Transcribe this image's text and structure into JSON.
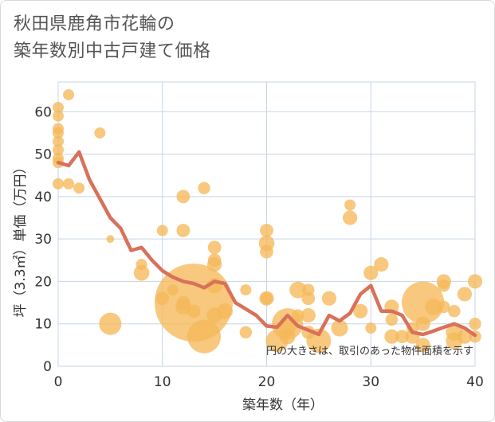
{
  "title": {
    "line1": "秋田県鹿角市花輪の",
    "line2": "築年数別中古戸建て価格"
  },
  "chart_data": {
    "type": "scatter",
    "xlabel": "築年数（年）",
    "ylabel": "坪（3.3㎡）単価（万円）",
    "xlim": [
      0,
      40
    ],
    "ylim": [
      0,
      67
    ],
    "xticks": [
      0,
      10,
      20,
      30,
      40
    ],
    "yticks": [
      0,
      10,
      20,
      30,
      40,
      50,
      60
    ],
    "grid": true,
    "annotation": "円の大きさは、取引のあった物件面積を示す",
    "colors": {
      "bubble": "#f5b85a",
      "line": "#d9715a",
      "grid": "#c7d5e3"
    },
    "points": [
      {
        "x": 0,
        "y": 61,
        "s": 1
      },
      {
        "x": 0,
        "y": 59,
        "s": 1
      },
      {
        "x": 0,
        "y": 56,
        "s": 1
      },
      {
        "x": 0,
        "y": 55,
        "s": 1
      },
      {
        "x": 0,
        "y": 53,
        "s": 1
      },
      {
        "x": 0,
        "y": 51,
        "s": 1
      },
      {
        "x": 0,
        "y": 49,
        "s": 1
      },
      {
        "x": 0,
        "y": 48,
        "s": 1
      },
      {
        "x": 0,
        "y": 43,
        "s": 1
      },
      {
        "x": 1,
        "y": 64,
        "s": 1
      },
      {
        "x": 1,
        "y": 43,
        "s": 1
      },
      {
        "x": 2,
        "y": 42,
        "s": 1
      },
      {
        "x": 4,
        "y": 55,
        "s": 1
      },
      {
        "x": 5,
        "y": 30,
        "s": 0.7
      },
      {
        "x": 5,
        "y": 10,
        "s": 2
      },
      {
        "x": 8,
        "y": 24,
        "s": 1
      },
      {
        "x": 8,
        "y": 22,
        "s": 1.4
      },
      {
        "x": 10,
        "y": 32,
        "s": 1
      },
      {
        "x": 10,
        "y": 16,
        "s": 1.2
      },
      {
        "x": 11,
        "y": 18,
        "s": 1
      },
      {
        "x": 12,
        "y": 40,
        "s": 1.2
      },
      {
        "x": 12,
        "y": 32,
        "s": 1.2
      },
      {
        "x": 12,
        "y": 15,
        "s": 1.2
      },
      {
        "x": 12,
        "y": 14,
        "s": 1.4
      },
      {
        "x": 13,
        "y": 15,
        "s": 7
      },
      {
        "x": 13,
        "y": 13,
        "s": 1.2
      },
      {
        "x": 14,
        "y": 42,
        "s": 1.1
      },
      {
        "x": 14,
        "y": 7,
        "s": 3
      },
      {
        "x": 15,
        "y": 28,
        "s": 1.2
      },
      {
        "x": 15,
        "y": 25,
        "s": 1.2
      },
      {
        "x": 15,
        "y": 24,
        "s": 1.3
      },
      {
        "x": 15,
        "y": 19,
        "s": 1.4
      },
      {
        "x": 15,
        "y": 12,
        "s": 1.4
      },
      {
        "x": 16,
        "y": 13,
        "s": 1.4
      },
      {
        "x": 18,
        "y": 18,
        "s": 1
      },
      {
        "x": 18,
        "y": 8,
        "s": 1.1
      },
      {
        "x": 20,
        "y": 32,
        "s": 1.2
      },
      {
        "x": 20,
        "y": 29,
        "s": 1.4
      },
      {
        "x": 20,
        "y": 27,
        "s": 1.2
      },
      {
        "x": 20,
        "y": 16,
        "s": 1.1
      },
      {
        "x": 20,
        "y": 16,
        "s": 1.3
      },
      {
        "x": 21,
        "y": 6,
        "s": 2
      },
      {
        "x": 22,
        "y": 10,
        "s": 2.8
      },
      {
        "x": 22,
        "y": 9,
        "s": 1.5
      },
      {
        "x": 22,
        "y": 7,
        "s": 1.4
      },
      {
        "x": 23,
        "y": 18,
        "s": 1.5
      },
      {
        "x": 23,
        "y": 12,
        "s": 1.1
      },
      {
        "x": 24,
        "y": 18,
        "s": 1.1
      },
      {
        "x": 24,
        "y": 16,
        "s": 1.2
      },
      {
        "x": 24,
        "y": 12,
        "s": 1.3
      },
      {
        "x": 24,
        "y": 8,
        "s": 1.2
      },
      {
        "x": 25,
        "y": 6,
        "s": 2.2
      },
      {
        "x": 26,
        "y": 16,
        "s": 1.3
      },
      {
        "x": 27,
        "y": 9,
        "s": 1.5
      },
      {
        "x": 28,
        "y": 38,
        "s": 1
      },
      {
        "x": 28,
        "y": 35,
        "s": 1.3
      },
      {
        "x": 29,
        "y": 13,
        "s": 1.3
      },
      {
        "x": 30,
        "y": 22,
        "s": 1.3
      },
      {
        "x": 30,
        "y": 9,
        "s": 1
      },
      {
        "x": 31,
        "y": 24,
        "s": 1.3
      },
      {
        "x": 32,
        "y": 14,
        "s": 1.3
      },
      {
        "x": 32,
        "y": 11,
        "s": 1.1
      },
      {
        "x": 32,
        "y": 7,
        "s": 1.3
      },
      {
        "x": 33,
        "y": 7,
        "s": 1.2
      },
      {
        "x": 34,
        "y": 9,
        "s": 1.1
      },
      {
        "x": 34,
        "y": 7,
        "s": 1.3
      },
      {
        "x": 35,
        "y": 15,
        "s": 3.8
      },
      {
        "x": 35,
        "y": 10,
        "s": 1.3
      },
      {
        "x": 35,
        "y": 5,
        "s": 1.3
      },
      {
        "x": 36,
        "y": 14,
        "s": 1.5
      },
      {
        "x": 37,
        "y": 20,
        "s": 1.3
      },
      {
        "x": 37,
        "y": 19,
        "s": 1.1
      },
      {
        "x": 37,
        "y": 14,
        "s": 1.1
      },
      {
        "x": 38,
        "y": 13,
        "s": 1.1
      },
      {
        "x": 38,
        "y": 8,
        "s": 1.5
      },
      {
        "x": 38,
        "y": 6,
        "s": 1.5
      },
      {
        "x": 39,
        "y": 17,
        "s": 1.3
      },
      {
        "x": 39,
        "y": 7,
        "s": 1.3
      },
      {
        "x": 40,
        "y": 20,
        "s": 1.3
      },
      {
        "x": 40,
        "y": 10,
        "s": 1.1
      },
      {
        "x": 40,
        "y": 7,
        "s": 1.1
      }
    ],
    "average_line": {
      "x": [
        0,
        1,
        2,
        3,
        4,
        5,
        6,
        7,
        8,
        9,
        10,
        11,
        12,
        13,
        14,
        15,
        16,
        17,
        18,
        19,
        20,
        21,
        22,
        23,
        24,
        25,
        26,
        27,
        28,
        29,
        30,
        31,
        32,
        33,
        34,
        35,
        36,
        37,
        38,
        39,
        40
      ],
      "y": [
        48,
        47.3,
        50.5,
        44,
        39.5,
        35,
        32.5,
        27.3,
        28,
        25,
        22.5,
        21,
        20,
        19.5,
        18.5,
        20,
        19.5,
        15,
        13.5,
        12,
        9.5,
        9.2,
        12,
        9.5,
        8.5,
        7.5,
        12,
        10.7,
        12.5,
        17,
        19,
        13,
        13,
        12,
        8,
        7.5,
        8.3,
        9.2,
        10,
        9,
        7.3
      ]
    }
  }
}
